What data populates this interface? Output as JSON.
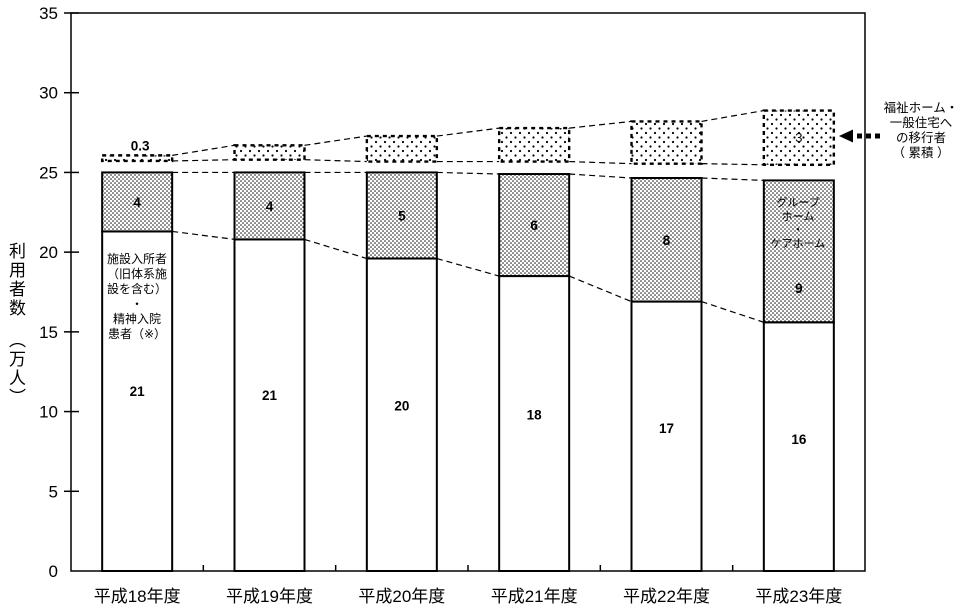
{
  "chart_data": {
    "type": "bar",
    "stacked": true,
    "title": "",
    "ylabel": "利用者数（万人）",
    "ylabel_main": "利用者数",
    "ylabel_unit": "（万人）",
    "ylim": [
      0,
      35
    ],
    "yticks": [
      0,
      5,
      10,
      15,
      20,
      25,
      30,
      35
    ],
    "grid": false,
    "categories": [
      "平成18年度",
      "平成19年度",
      "平成20年度",
      "平成21年度",
      "平成22年度",
      "平成23年度"
    ],
    "series": [
      {
        "name": "施設入所者（旧体系施設を含む）・精神入院患者（※）",
        "style": "white",
        "values": [
          21,
          21,
          20,
          18,
          17,
          16
        ],
        "shown_labels": [
          "21",
          "21",
          "20",
          "18",
          "17",
          "16"
        ],
        "draw_values": [
          21.3,
          20.8,
          19.6,
          18.5,
          16.9,
          15.6
        ]
      },
      {
        "name": "グループホーム・ケアホーム",
        "style": "dense-dots",
        "values": [
          4,
          4,
          5,
          6,
          8,
          9
        ],
        "shown_labels": [
          "4",
          "4",
          "5",
          "6",
          "8",
          "9"
        ],
        "draw_values": [
          3.7,
          4.2,
          5.4,
          6.4,
          7.75,
          8.9
        ],
        "label_frac": [
          0.5,
          0.5,
          0.5,
          0.5,
          0.5,
          0.24
        ]
      },
      {
        "name": "福祉ホーム・一般住宅への移行者（累積）",
        "style": "sparse-dots-dashed-box",
        "values": [
          0.3,
          0.9,
          1.6,
          2.1,
          2.7,
          3
        ],
        "shown_labels": [
          "0.3",
          "",
          "",
          "",
          "",
          "3"
        ],
        "draw_bottom": [
          25.72,
          25.8,
          25.68,
          25.68,
          25.55,
          25.48
        ],
        "draw_height": [
          0.35,
          0.9,
          1.6,
          2.1,
          2.65,
          3.4
        ]
      }
    ],
    "in_bar_text": {
      "first_bar_lines": [
        "施設入所者",
        "（旧体系施",
        "設を含む）",
        "・",
        "精神入院",
        "患者（※）"
      ],
      "last_bar_lines": [
        "グループ",
        "ホーム",
        "・",
        "ケアホーム"
      ]
    },
    "annotation": {
      "lines": [
        "福祉ホーム・",
        "一般住宅へ",
        "の移行者",
        "（ 累積 ）"
      ],
      "arrow": "dotted-arrow-left"
    },
    "colors": {
      "ink": "#000000",
      "background": "#ffffff"
    },
    "legend_position": "right-annotation-only"
  }
}
